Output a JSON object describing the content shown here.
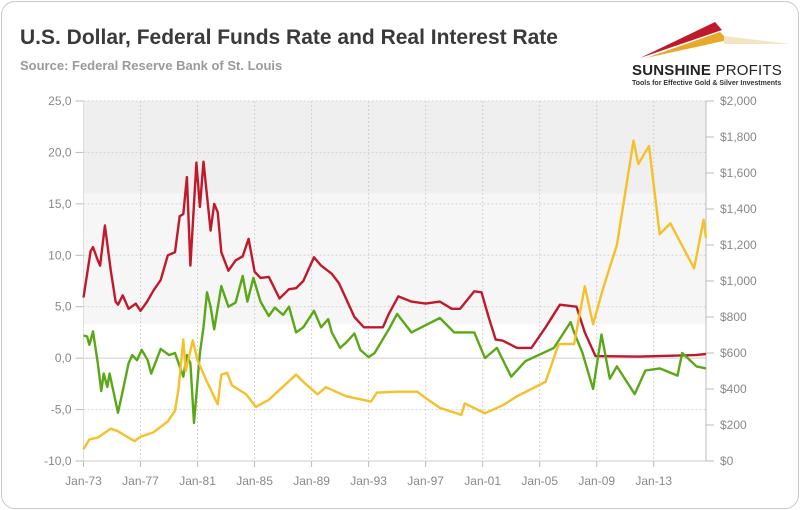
{
  "header": {
    "title": "U.S. Dollar, Federal Funds Rate and Real Interest Rate",
    "subtitle": "Source: Federal Reserve Bank of St. Louis"
  },
  "logo": {
    "name_bold": "SUNSHINE",
    "name_light": " PROFITS",
    "tagline": "Tools for Effective Gold & Silver Investments"
  },
  "chart_data": {
    "type": "line",
    "x_range": [
      "1973-01",
      "2016-09"
    ],
    "x_ticks": [
      "Jan-73",
      "Jan-77",
      "Jan-81",
      "Jan-85",
      "Jan-89",
      "Jan-93",
      "Jan-97",
      "Jan-01",
      "Jan-05",
      "Jan-09",
      "Jan-13"
    ],
    "y_left": {
      "range": [
        -10,
        25
      ],
      "ticks": [
        "-10,0",
        "-5,0",
        "0,0",
        "5,0",
        "10,0",
        "15,0",
        "20,0",
        "25,0"
      ]
    },
    "y_right": {
      "range": [
        0,
        2000
      ],
      "ticks": [
        "$0",
        "$200",
        "$400",
        "$600",
        "$800",
        "$1,000",
        "$1,200",
        "$1,400",
        "$1,600",
        "$1,800",
        "$2,000"
      ]
    },
    "grid": true,
    "series": [
      {
        "color": "#c0192c",
        "axis": "left",
        "points": [
          [
            "1973-01",
            5.9
          ],
          [
            "1973-07",
            10.4
          ],
          [
            "1973-09",
            10.8
          ],
          [
            "1974-01",
            9.5
          ],
          [
            "1974-03",
            9.0
          ],
          [
            "1974-07",
            12.9
          ],
          [
            "1974-12",
            8.5
          ],
          [
            "1975-04",
            5.5
          ],
          [
            "1975-06",
            5.2
          ],
          [
            "1975-10",
            6.1
          ],
          [
            "1976-03",
            4.8
          ],
          [
            "1976-09",
            5.3
          ],
          [
            "1977-01",
            4.6
          ],
          [
            "1977-06",
            5.4
          ],
          [
            "1977-12",
            6.6
          ],
          [
            "1978-06",
            7.6
          ],
          [
            "1978-12",
            10.0
          ],
          [
            "1979-06",
            10.3
          ],
          [
            "1979-10",
            13.8
          ],
          [
            "1980-01",
            14.0
          ],
          [
            "1980-04",
            17.6
          ],
          [
            "1980-07",
            9.0
          ],
          [
            "1980-12",
            19.0
          ],
          [
            "1981-03",
            14.7
          ],
          [
            "1981-06",
            19.1
          ],
          [
            "1981-12",
            12.4
          ],
          [
            "1982-03",
            15.0
          ],
          [
            "1982-06",
            14.2
          ],
          [
            "1982-09",
            10.3
          ],
          [
            "1983-03",
            8.5
          ],
          [
            "1983-09",
            9.5
          ],
          [
            "1984-03",
            9.9
          ],
          [
            "1984-08",
            11.6
          ],
          [
            "1985-01",
            8.4
          ],
          [
            "1985-06",
            7.8
          ],
          [
            "1986-01",
            7.9
          ],
          [
            "1986-10",
            5.8
          ],
          [
            "1987-06",
            6.7
          ],
          [
            "1987-12",
            6.8
          ],
          [
            "1988-06",
            7.5
          ],
          [
            "1989-03",
            9.8
          ],
          [
            "1989-09",
            9.0
          ],
          [
            "1990-06",
            8.2
          ],
          [
            "1990-12",
            7.3
          ],
          [
            "1991-06",
            5.8
          ],
          [
            "1992-01",
            4.0
          ],
          [
            "1992-09",
            3.0
          ],
          [
            "1993-06",
            3.0
          ],
          [
            "1994-01",
            3.0
          ],
          [
            "1994-06",
            4.3
          ],
          [
            "1995-02",
            6.0
          ],
          [
            "1996-01",
            5.5
          ],
          [
            "1997-01",
            5.3
          ],
          [
            "1998-01",
            5.5
          ],
          [
            "1998-11",
            4.8
          ],
          [
            "1999-06",
            4.8
          ],
          [
            "2000-06",
            6.5
          ],
          [
            "2000-12",
            6.4
          ],
          [
            "2001-06",
            4.0
          ],
          [
            "2001-12",
            1.8
          ],
          [
            "2002-06",
            1.7
          ],
          [
            "2003-06",
            1.0
          ],
          [
            "2004-06",
            1.0
          ],
          [
            "2005-06",
            3.0
          ],
          [
            "2006-06",
            5.2
          ],
          [
            "2007-08",
            5.0
          ],
          [
            "2008-03",
            2.5
          ],
          [
            "2008-12",
            0.2
          ],
          [
            "2012-01",
            0.15
          ],
          [
            "2015-12",
            0.3
          ],
          [
            "2016-09",
            0.4
          ]
        ]
      },
      {
        "color": "#5aa818",
        "axis": "left",
        "points": [
          [
            "1973-01",
            2.2
          ],
          [
            "1973-04",
            2.1
          ],
          [
            "1973-06",
            1.3
          ],
          [
            "1973-09",
            2.6
          ],
          [
            "1974-01",
            -0.5
          ],
          [
            "1974-04",
            -3.2
          ],
          [
            "1974-06",
            -1.5
          ],
          [
            "1974-09",
            -2.8
          ],
          [
            "1974-11",
            -1.5
          ],
          [
            "1975-06",
            -5.3
          ],
          [
            "1975-10",
            -3.2
          ],
          [
            "1976-03",
            -0.5
          ],
          [
            "1976-06",
            0.3
          ],
          [
            "1976-10",
            -0.2
          ],
          [
            "1977-02",
            0.8
          ],
          [
            "1977-07",
            -0.2
          ],
          [
            "1977-10",
            -1.5
          ],
          [
            "1978-06",
            0.9
          ],
          [
            "1979-01",
            0.3
          ],
          [
            "1979-06",
            0.5
          ],
          [
            "1980-01",
            -1.8
          ],
          [
            "1980-04",
            0.3
          ],
          [
            "1980-07",
            -0.5
          ],
          [
            "1980-10",
            -6.3
          ],
          [
            "1981-03",
            0.5
          ],
          [
            "1981-06",
            3.0
          ],
          [
            "1981-09",
            6.4
          ],
          [
            "1981-12",
            5.0
          ],
          [
            "1982-03",
            2.8
          ],
          [
            "1982-09",
            7.0
          ],
          [
            "1983-03",
            5.0
          ],
          [
            "1983-09",
            5.4
          ],
          [
            "1984-03",
            8.0
          ],
          [
            "1984-07",
            5.5
          ],
          [
            "1984-12",
            7.8
          ],
          [
            "1985-06",
            5.5
          ],
          [
            "1986-01",
            4.1
          ],
          [
            "1986-06",
            4.9
          ],
          [
            "1987-01",
            4.2
          ],
          [
            "1987-06",
            5.0
          ],
          [
            "1987-12",
            2.5
          ],
          [
            "1988-06",
            3.0
          ],
          [
            "1989-03",
            4.6
          ],
          [
            "1989-09",
            3.0
          ],
          [
            "1990-03",
            3.8
          ],
          [
            "1990-06",
            2.5
          ],
          [
            "1991-01",
            1.0
          ],
          [
            "1991-06",
            1.5
          ],
          [
            "1992-01",
            2.4
          ],
          [
            "1992-06",
            0.8
          ],
          [
            "1993-01",
            0.1
          ],
          [
            "1993-06",
            0.5
          ],
          [
            "1994-06",
            2.8
          ],
          [
            "1995-01",
            4.3
          ],
          [
            "1996-01",
            2.5
          ],
          [
            "1997-01",
            3.2
          ],
          [
            "1998-01",
            3.9
          ],
          [
            "1999-01",
            2.5
          ],
          [
            "2000-06",
            2.5
          ],
          [
            "2001-03",
            0.0
          ],
          [
            "2002-01",
            1.0
          ],
          [
            "2003-01",
            -1.8
          ],
          [
            "2004-01",
            -0.3
          ],
          [
            "2006-01",
            1.0
          ],
          [
            "2007-03",
            3.5
          ],
          [
            "2007-06",
            2.5
          ],
          [
            "2008-01",
            0.5
          ],
          [
            "2008-10",
            -3.0
          ],
          [
            "2009-05",
            2.3
          ],
          [
            "2009-12",
            -2.0
          ],
          [
            "2010-06",
            -0.8
          ],
          [
            "2011-09",
            -3.5
          ],
          [
            "2012-06",
            -1.2
          ],
          [
            "2013-06",
            -1.0
          ],
          [
            "2014-09",
            -1.7
          ],
          [
            "2015-01",
            0.5
          ],
          [
            "2016-01",
            -0.8
          ],
          [
            "2016-09",
            -1.0
          ]
        ]
      },
      {
        "color": "#f5c02a",
        "axis": "right",
        "points": [
          [
            "1973-01",
            65
          ],
          [
            "1973-06",
            120
          ],
          [
            "1974-01",
            130
          ],
          [
            "1974-12",
            180
          ],
          [
            "1975-06",
            165
          ],
          [
            "1976-08",
            110
          ],
          [
            "1977-01",
            135
          ],
          [
            "1977-12",
            160
          ],
          [
            "1978-12",
            220
          ],
          [
            "1979-06",
            280
          ],
          [
            "1979-09",
            400
          ],
          [
            "1980-01",
            675
          ],
          [
            "1980-03",
            500
          ],
          [
            "1980-09",
            670
          ],
          [
            "1981-01",
            560
          ],
          [
            "1981-09",
            440
          ],
          [
            "1982-06",
            315
          ],
          [
            "1982-09",
            480
          ],
          [
            "1983-02",
            490
          ],
          [
            "1983-06",
            420
          ],
          [
            "1984-06",
            370
          ],
          [
            "1985-02",
            300
          ],
          [
            "1986-01",
            340
          ],
          [
            "1987-12",
            480
          ],
          [
            "1988-06",
            440
          ],
          [
            "1989-06",
            370
          ],
          [
            "1990-01",
            410
          ],
          [
            "1991-06",
            360
          ],
          [
            "1993-03",
            330
          ],
          [
            "1993-08",
            380
          ],
          [
            "1995-01",
            385
          ],
          [
            "1996-06",
            385
          ],
          [
            "1997-01",
            350
          ],
          [
            "1998-01",
            295
          ],
          [
            "1999-07",
            256
          ],
          [
            "1999-10",
            320
          ],
          [
            "2001-03",
            265
          ],
          [
            "2002-06",
            310
          ],
          [
            "2003-06",
            360
          ],
          [
            "2004-06",
            400
          ],
          [
            "2005-06",
            440
          ],
          [
            "2006-05",
            650
          ],
          [
            "2007-06",
            650
          ],
          [
            "2008-03",
            970
          ],
          [
            "2008-10",
            760
          ],
          [
            "2009-06",
            950
          ],
          [
            "2010-06",
            1200
          ],
          [
            "2011-08",
            1780
          ],
          [
            "2011-12",
            1650
          ],
          [
            "2012-09",
            1750
          ],
          [
            "2013-06",
            1260
          ],
          [
            "2014-03",
            1320
          ],
          [
            "2015-11",
            1070
          ],
          [
            "2016-07",
            1340
          ],
          [
            "2016-09",
            1240
          ]
        ]
      }
    ]
  }
}
